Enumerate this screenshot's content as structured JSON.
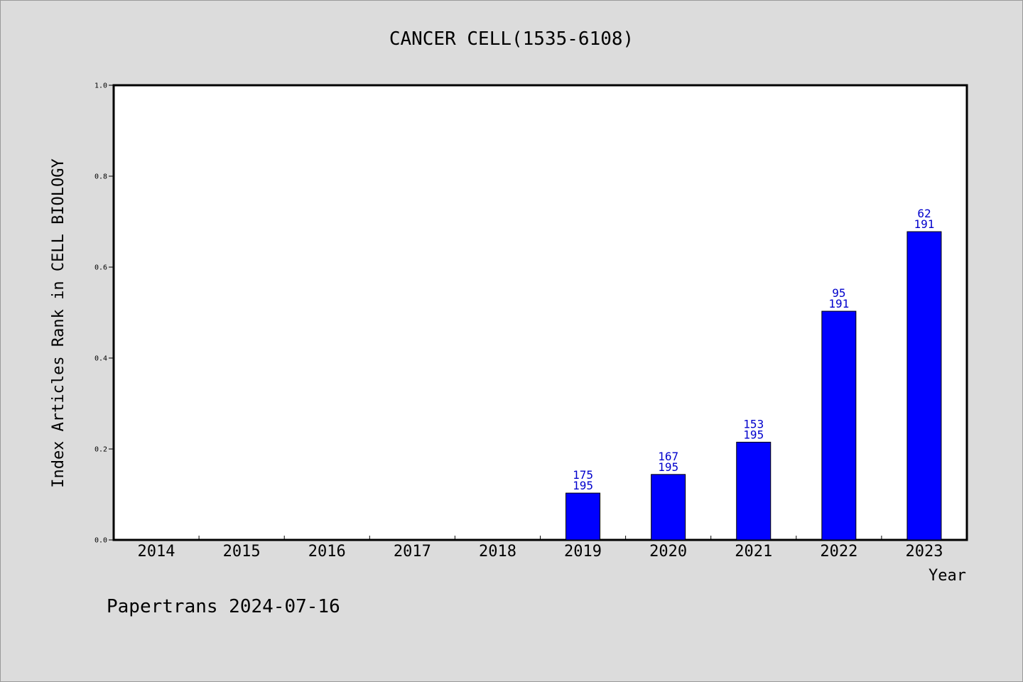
{
  "chart_data": {
    "type": "bar",
    "title": "CANCER CELL(1535-6108)",
    "xlabel": "Year",
    "ylabel": "Index Articles Rank in CELL BIOLOGY",
    "ylim": [
      0,
      1.0
    ],
    "y_ticks": [
      "0.0",
      "0.2",
      "0.4",
      "0.6",
      "0.8",
      "1.0"
    ],
    "grid": false,
    "categories": [
      "2014",
      "2015",
      "2016",
      "2017",
      "2018",
      "2019",
      "2020",
      "2021",
      "2022",
      "2023"
    ],
    "values": [
      0,
      0,
      0,
      0,
      0,
      0.103,
      0.144,
      0.215,
      0.503,
      0.678
    ],
    "labels": [
      null,
      null,
      null,
      null,
      null,
      [
        "175",
        "195"
      ],
      [
        "167",
        "195"
      ],
      [
        "153",
        "195"
      ],
      [
        "95",
        "191"
      ],
      [
        "62",
        "191"
      ]
    ],
    "bar_color": "#0000ff",
    "label_color": "#0000cc"
  },
  "footer": "Papertrans 2024-07-16"
}
